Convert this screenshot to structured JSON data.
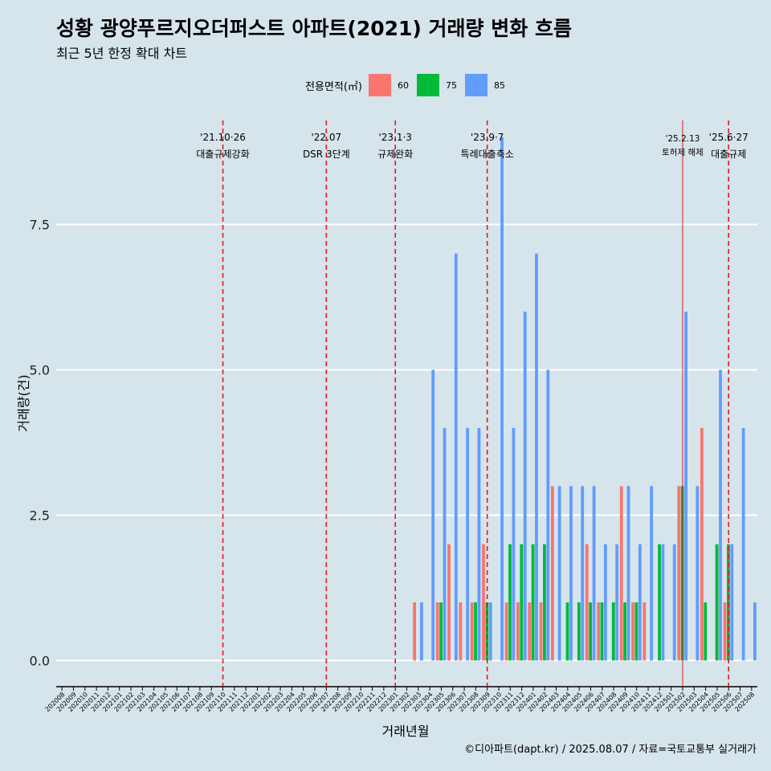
{
  "title": "성황 광양푸르지오더퍼스트 아파트(2021) 거래량 변화 흐름",
  "subtitle": "최근 5년 한정 확대 차트",
  "caption": "©디아파트(dapt.kr) / 2025.08.07 / 자료=국토교통부 실거래가",
  "legend": {
    "title": "전용면적(㎡)"
  },
  "colors": {
    "background": "#d6e4eb",
    "grid": "#ffffff",
    "event_line": "#e31a1c",
    "axis": "#000000"
  },
  "chart_data": {
    "type": "bar",
    "xlabel": "거래년월",
    "ylabel": "거래량(건)",
    "ylim": [
      -0.45,
      9.4
    ],
    "yticks": [
      0.0,
      2.5,
      5.0,
      7.5
    ],
    "ytick_labels": [
      "0.0",
      "2.5",
      "5.0",
      "7.5"
    ],
    "grid": true,
    "legend_position": "top",
    "categories": [
      "202008",
      "202009",
      "202010",
      "202011",
      "202012",
      "202101",
      "202102",
      "202103",
      "202104",
      "202105",
      "202106",
      "202107",
      "202108",
      "202109",
      "202110",
      "202111",
      "202112",
      "202201",
      "202202",
      "202203",
      "202204",
      "202205",
      "202206",
      "202207",
      "202208",
      "202209",
      "202210",
      "202211",
      "202212",
      "202301",
      "202302",
      "202303",
      "202304",
      "202305",
      "202306",
      "202307",
      "202308",
      "202309",
      "202310",
      "202311",
      "202312",
      "202401",
      "202402",
      "202403",
      "202404",
      "202405",
      "202406",
      "202407",
      "202408",
      "202409",
      "202410",
      "202411",
      "202412",
      "202501",
      "202502",
      "202503",
      "202504",
      "202505",
      "202506",
      "202507",
      "202508"
    ],
    "series": [
      {
        "name": "60",
        "color": "#f8766d",
        "values": [
          0,
          0,
          0,
          0,
          0,
          0,
          0,
          0,
          0,
          0,
          0,
          0,
          0,
          0,
          0,
          0,
          0,
          0,
          0,
          0,
          0,
          0,
          0,
          0,
          0,
          0,
          0,
          0,
          0,
          0,
          0,
          1,
          0,
          1,
          2,
          1,
          1,
          2,
          0,
          1,
          1,
          1,
          1,
          3,
          0,
          0,
          2,
          1,
          0,
          3,
          1,
          1,
          0,
          0,
          3,
          0,
          4,
          0,
          1,
          0,
          0
        ]
      },
      {
        "name": "75",
        "color": "#00ba38",
        "values": [
          0,
          0,
          0,
          0,
          0,
          0,
          0,
          0,
          0,
          0,
          0,
          0,
          0,
          0,
          0,
          0,
          0,
          0,
          0,
          0,
          0,
          0,
          0,
          0,
          0,
          0,
          0,
          0,
          0,
          0,
          0,
          0,
          0,
          1,
          0,
          0,
          1,
          1,
          0,
          2,
          2,
          2,
          2,
          0,
          1,
          1,
          1,
          1,
          1,
          1,
          1,
          0,
          2,
          0,
          3,
          0,
          1,
          2,
          2,
          0,
          0
        ]
      },
      {
        "name": "85",
        "color": "#619cff",
        "values": [
          0,
          0,
          0,
          0,
          0,
          0,
          0,
          0,
          0,
          0,
          0,
          0,
          0,
          0,
          0,
          0,
          0,
          0,
          0,
          0,
          0,
          0,
          0,
          0,
          0,
          0,
          0,
          0,
          0,
          0,
          0,
          1,
          5,
          4,
          7,
          4,
          4,
          1,
          9,
          4,
          6,
          7,
          5,
          3,
          3,
          3,
          3,
          2,
          2,
          3,
          2,
          3,
          2,
          2,
          6,
          3,
          0,
          5,
          2,
          4,
          1
        ]
      }
    ],
    "events": [
      {
        "category": "202110",
        "date": "'21.10·26",
        "label": "대출규제강화",
        "style": "dashed"
      },
      {
        "category": "202207",
        "date": "'22.07",
        "label": "DSR 3단계",
        "style": "dashed"
      },
      {
        "category": "202301",
        "date": "'23.1·3",
        "label": "규제완화",
        "style": "dashed"
      },
      {
        "category": "202309",
        "date": "'23.9·7",
        "label": "특례대출축소",
        "style": "dashed"
      },
      {
        "category": "202502",
        "date": "'25.2.13",
        "label": "토허제 해제",
        "style": "thin"
      },
      {
        "category": "202506",
        "date": "'25.6·27",
        "label": "대출규제",
        "style": "dashed"
      }
    ]
  }
}
